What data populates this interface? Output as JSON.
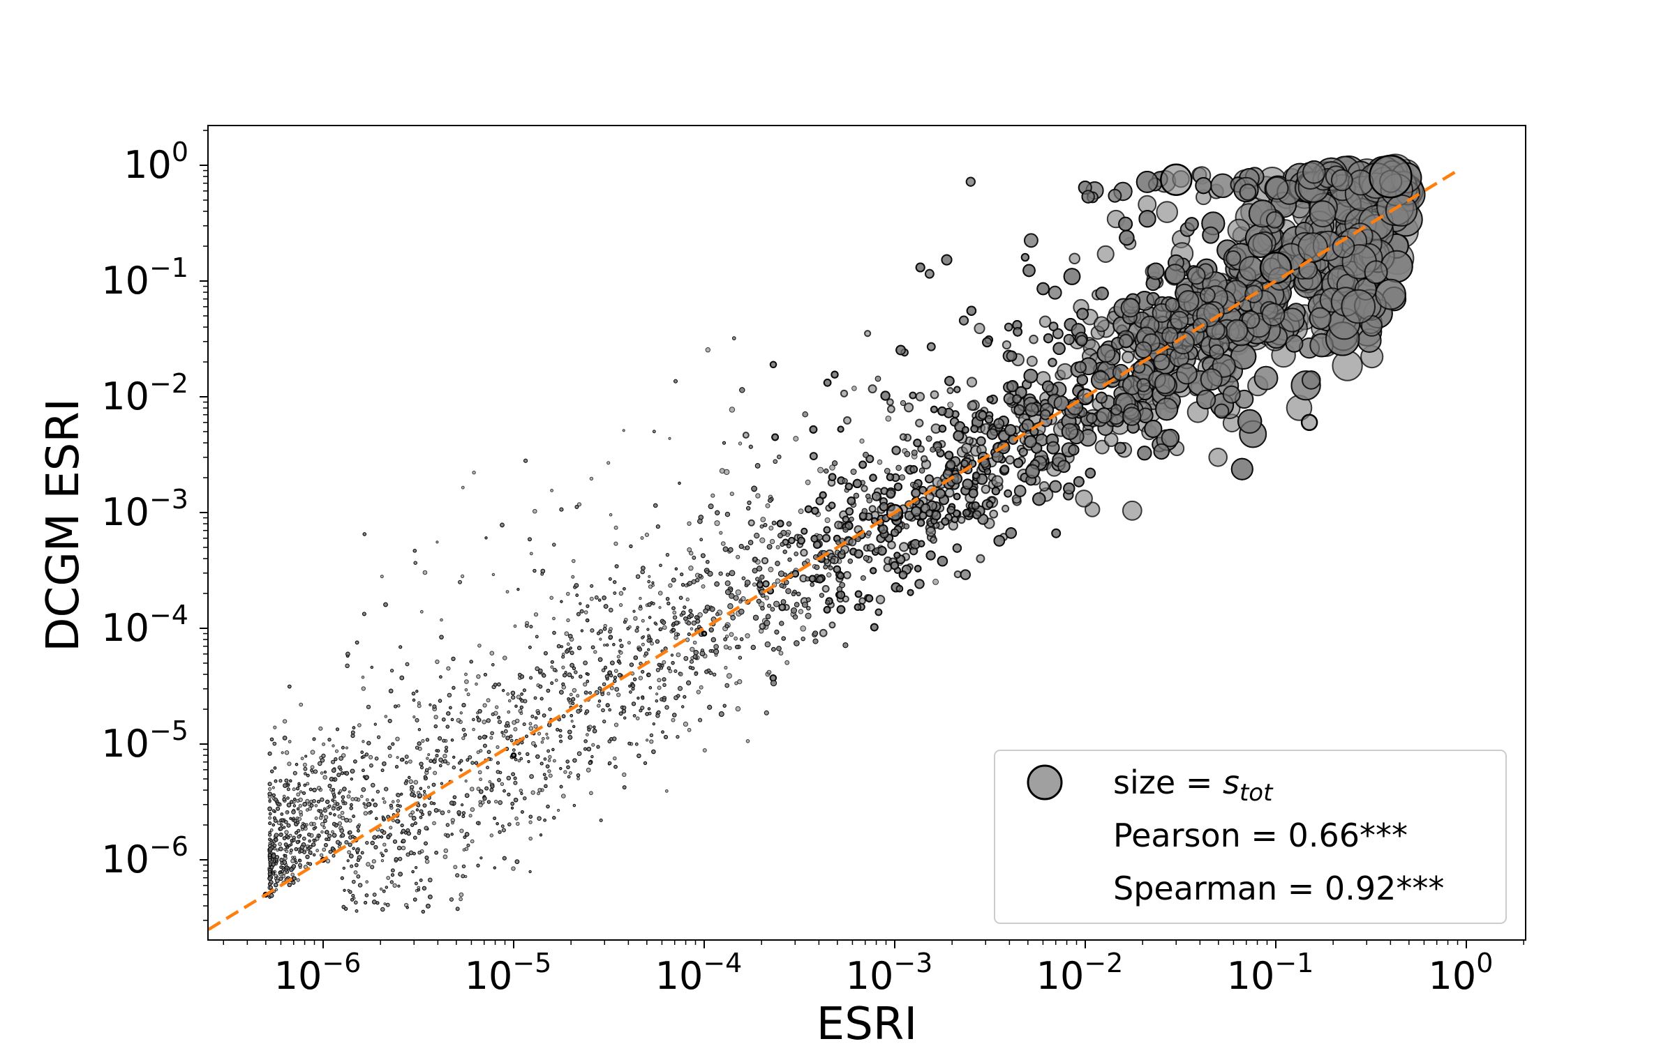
{
  "chart_data": {
    "type": "scatter",
    "xlabel": "ESRI",
    "ylabel": "DCGM ESRI",
    "x_scale": "log",
    "y_scale": "log",
    "xlim": [
      2.5e-07,
      2.0
    ],
    "ylim": [
      1.5e-07,
      2.0
    ],
    "x_ticks": [
      {
        "base": "10",
        "exp": "−6",
        "value": 1e-06
      },
      {
        "base": "10",
        "exp": "−5",
        "value": 1e-05
      },
      {
        "base": "10",
        "exp": "−4",
        "value": 0.0001
      },
      {
        "base": "10",
        "exp": "−3",
        "value": 0.001
      },
      {
        "base": "10",
        "exp": "−2",
        "value": 0.01
      },
      {
        "base": "10",
        "exp": "−1",
        "value": 0.1
      },
      {
        "base": "10",
        "exp": "0",
        "value": 1
      }
    ],
    "y_ticks": [
      {
        "base": "10",
        "exp": "−6",
        "value": 1e-06
      },
      {
        "base": "10",
        "exp": "−5",
        "value": 1e-05
      },
      {
        "base": "10",
        "exp": "−4",
        "value": 0.0001
      },
      {
        "base": "10",
        "exp": "−3",
        "value": 0.001
      },
      {
        "base": "10",
        "exp": "−2",
        "value": 0.01
      },
      {
        "base": "10",
        "exp": "−1",
        "value": 0.1
      },
      {
        "base": "10",
        "exp": "0",
        "value": 1
      }
    ],
    "grid": false,
    "marker_color": "#808080",
    "marker_edge_color": "#000000",
    "marker_alpha": 0.6,
    "reference_line": {
      "style": "dashed",
      "color": "#ff7f0e",
      "x": [
        2.5e-07,
        0.9
      ],
      "y": [
        2.5e-07,
        0.9
      ]
    },
    "approx_point_count": 6000,
    "points_sample": [
      {
        "x": 5e-07,
        "y": 5e-07,
        "size": "small"
      },
      {
        "x": 1e-06,
        "y": 1e-06,
        "size": "small"
      },
      {
        "x": 1e-05,
        "y": 8e-06,
        "size": "small"
      },
      {
        "x": 0.0001,
        "y": 9e-05,
        "size": "small"
      },
      {
        "x": 0.001,
        "y": 0.001,
        "size": "medium"
      },
      {
        "x": 0.01,
        "y": 0.01,
        "size": "medium"
      },
      {
        "x": 0.03,
        "y": 0.75,
        "size": "large"
      },
      {
        "x": 0.1,
        "y": 0.13,
        "size": "large"
      },
      {
        "x": 0.4,
        "y": 0.8,
        "size": "largest"
      },
      {
        "x": 0.15,
        "y": 0.006,
        "size": "medium"
      }
    ],
    "legend": {
      "location": "lower right",
      "size_label_prefix": "size = ",
      "size_label_symbol": "s",
      "size_label_subscript": "tot",
      "entries": [
        "Pearson = 0.66***",
        "Spearman = 0.92***"
      ]
    }
  }
}
